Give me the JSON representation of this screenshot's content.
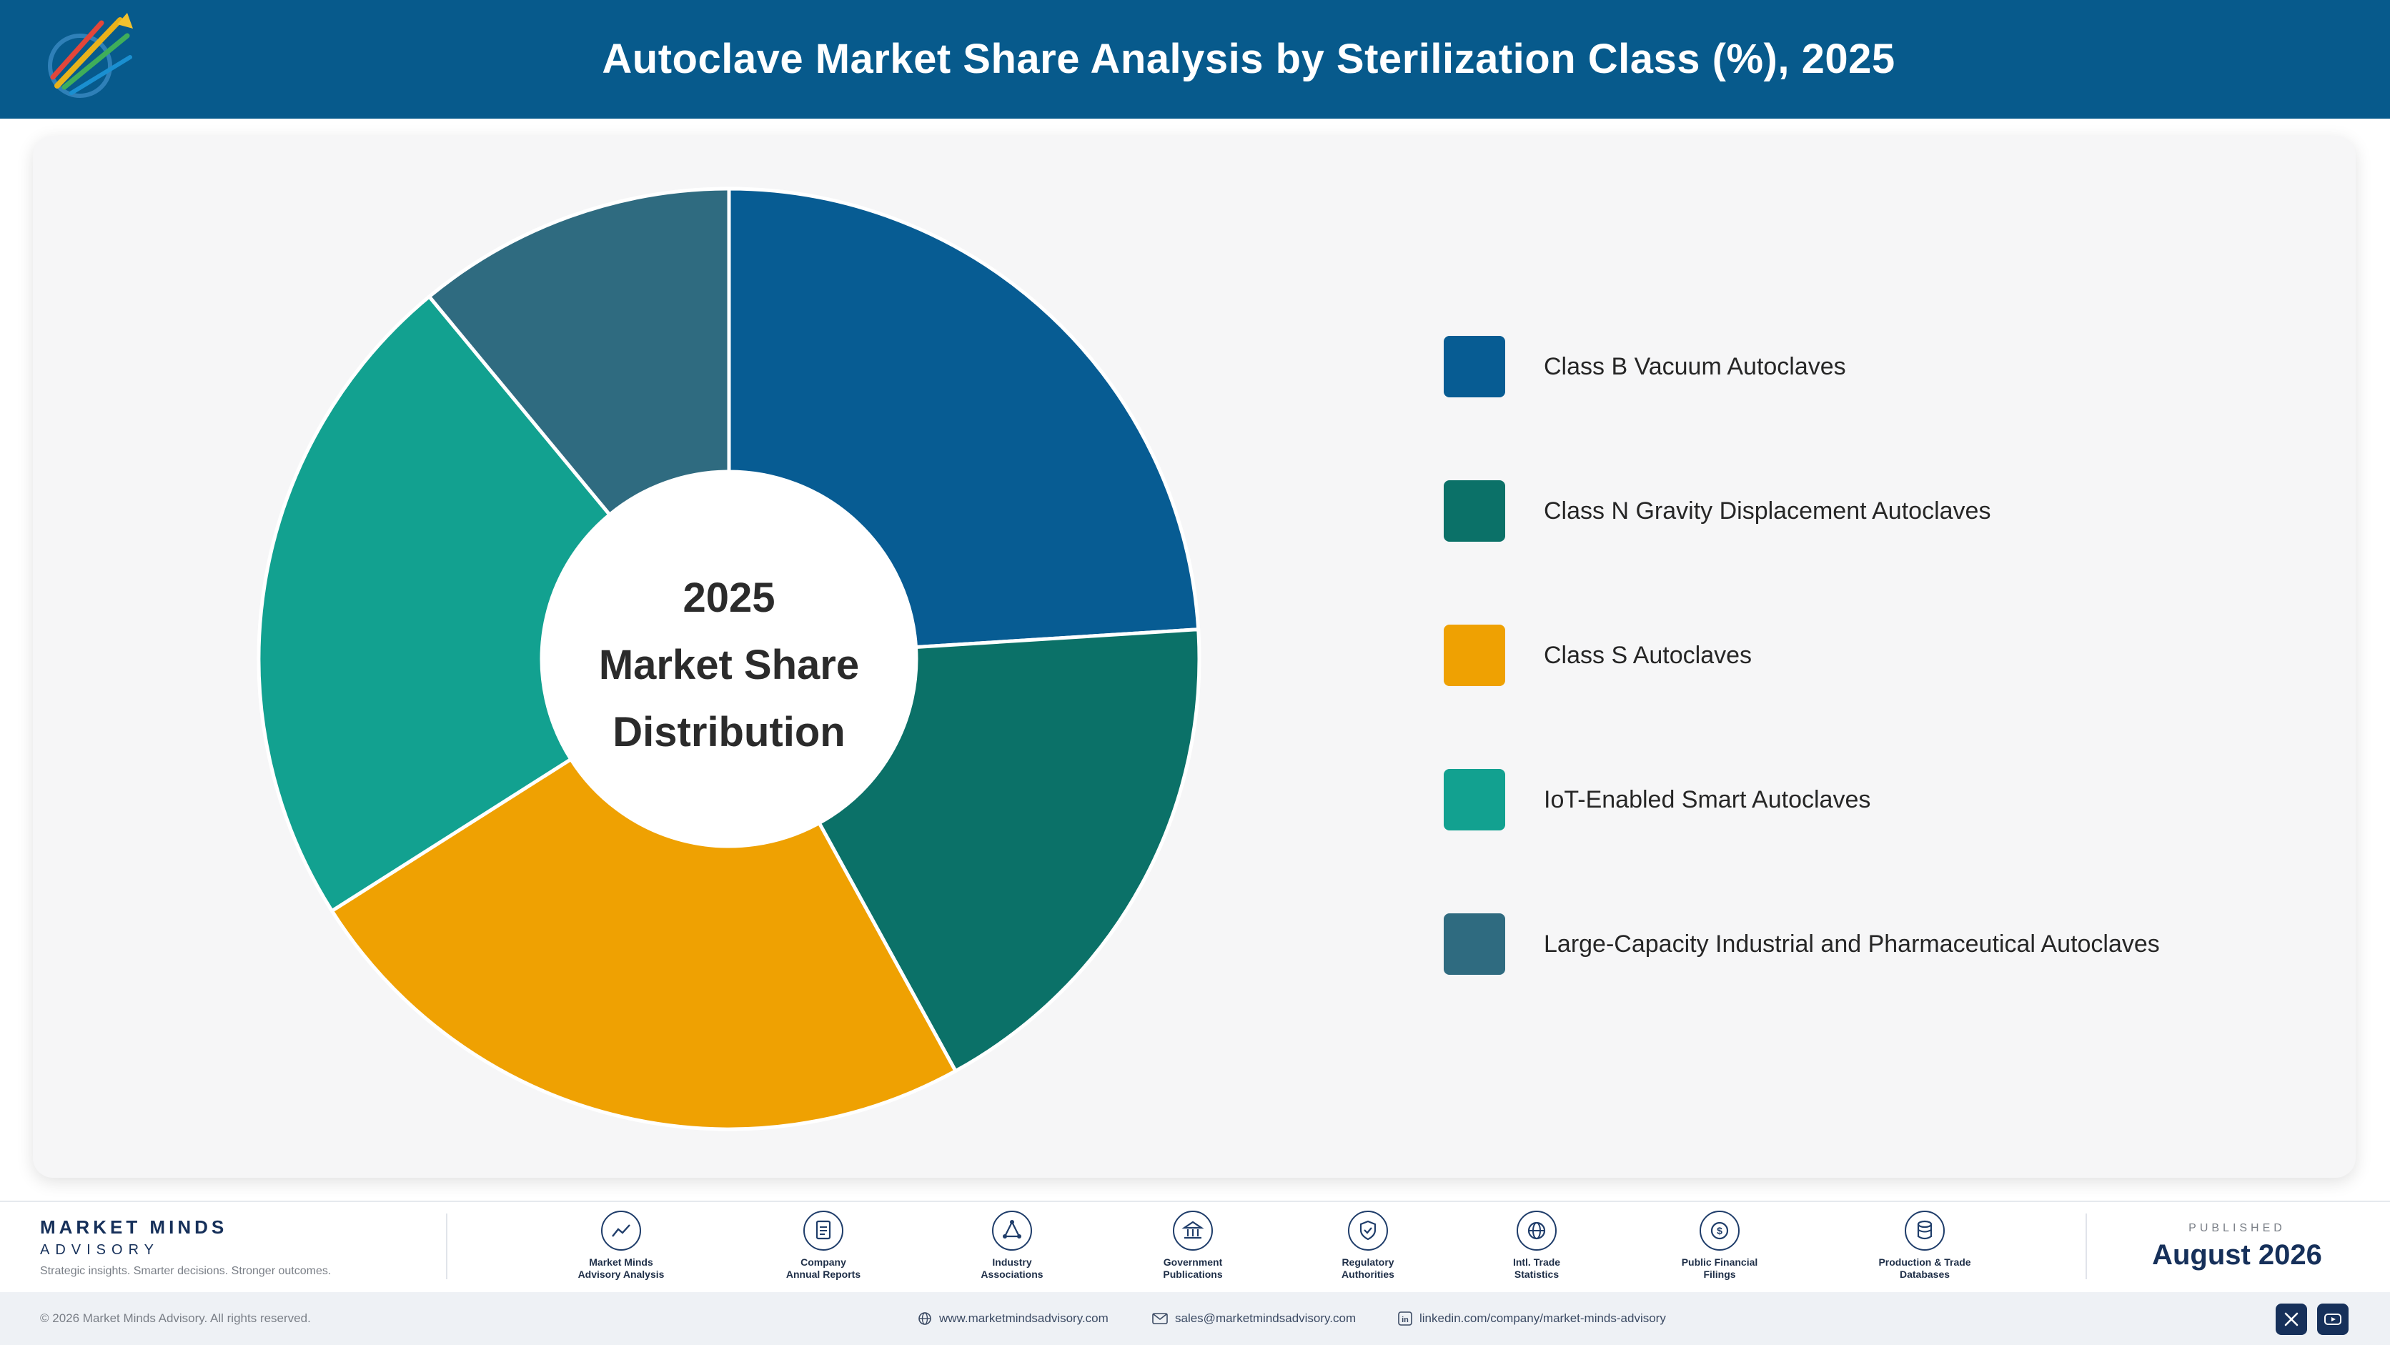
{
  "header": {
    "title": "Autoclave Market Share Analysis by Sterilization Class (%), 2025",
    "logo_icon": "market-minds-logo-icon"
  },
  "center_label": {
    "line1": "2025",
    "line2": "Market Share",
    "line3": "Distribution"
  },
  "chart_data": {
    "type": "pie",
    "donut": true,
    "start_angle_deg": 0,
    "direction": "clockwise",
    "legend_position": "right",
    "categories": [
      "Class B Vacuum Autoclaves",
      "Class N Gravity Displacement Autoclaves",
      "Class S Autoclaves",
      "IoT-Enabled Smart Autoclaves",
      "Large-Capacity Industrial and Pharmaceutical Autoclaves"
    ],
    "values": [
      24,
      18,
      24,
      23,
      11
    ],
    "colors": [
      "#075c93",
      "#0b7168",
      "#efa102",
      "#12a190",
      "#2f6b80"
    ]
  },
  "footer": {
    "brand_name": "MARKET MINDS",
    "brand_sub": "ADVISORY",
    "tagline": "Strategic insights. Smarter decisions. Stronger outcomes.",
    "sources": [
      {
        "label": "Market Minds\nAdvisory Analysis",
        "icon": "trend-chart-icon"
      },
      {
        "label": "Company\nAnnual Reports",
        "icon": "document-icon"
      },
      {
        "label": "Industry\nAssociations",
        "icon": "network-icon"
      },
      {
        "label": "Government\nPublications",
        "icon": "government-building-icon"
      },
      {
        "label": "Regulatory\nAuthorities",
        "icon": "shield-check-icon"
      },
      {
        "label": "Intl. Trade\nStatistics",
        "icon": "globe-icon"
      },
      {
        "label": "Public Financial\nFilings",
        "icon": "dollar-coin-icon"
      },
      {
        "label": "Production & Trade\nDatabases",
        "icon": "database-icon"
      }
    ],
    "published_label": "PUBLISHED",
    "published_date": "August 2026",
    "copyright": "© 2026 Market Minds Advisory. All rights reserved.",
    "website": "www.marketmindsadvisory.com",
    "email": "sales@marketmindsadvisory.com",
    "linkedin": "linkedin.com/company/market-minds-advisory"
  }
}
